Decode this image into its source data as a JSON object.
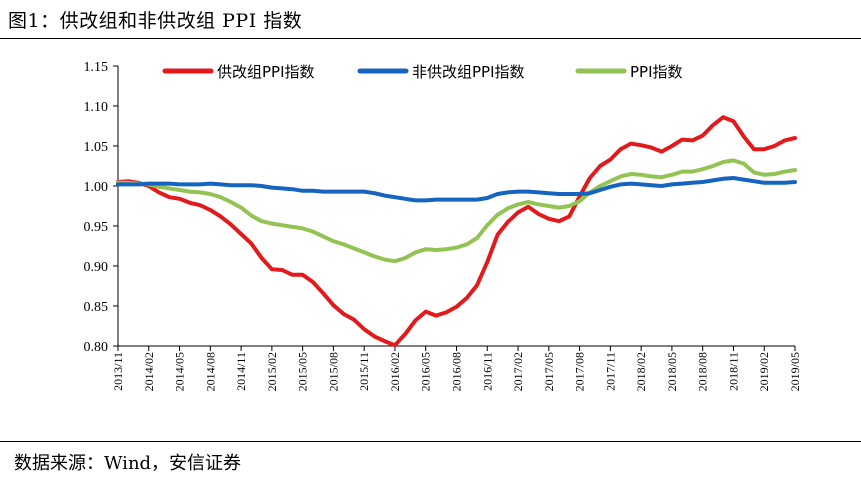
{
  "figure": {
    "title": "图1：供改组和非供改组 PPI 指数",
    "source_label": "数据来源：",
    "source_text": "Wind，安信证券"
  },
  "chart_data": {
    "type": "line",
    "title": "",
    "xlabel": "",
    "ylabel": "",
    "ylim": [
      0.8,
      1.15
    ],
    "yticks": [
      "0.80",
      "0.85",
      "0.90",
      "0.95",
      "1.00",
      "1.05",
      "1.10",
      "1.15"
    ],
    "xticks": [
      "2013/11",
      "2014/02",
      "2014/05",
      "2014/08",
      "2014/11",
      "2015/02",
      "2015/05",
      "2015/08",
      "2015/11",
      "2016/02",
      "2016/05",
      "2016/08",
      "2016/11",
      "2017/02",
      "2017/05",
      "2017/08",
      "2017/11",
      "2018/02",
      "2018/05",
      "2018/08",
      "2018/11",
      "2019/02",
      "2019/05"
    ],
    "legend_position": "top",
    "grid": false,
    "x": [
      "2013/11",
      "2013/12",
      "2014/01",
      "2014/02",
      "2014/03",
      "2014/04",
      "2014/05",
      "2014/06",
      "2014/07",
      "2014/08",
      "2014/09",
      "2014/10",
      "2014/11",
      "2014/12",
      "2015/01",
      "2015/02",
      "2015/03",
      "2015/04",
      "2015/05",
      "2015/06",
      "2015/07",
      "2015/08",
      "2015/09",
      "2015/10",
      "2015/11",
      "2015/12",
      "2016/01",
      "2016/02",
      "2016/03",
      "2016/04",
      "2016/05",
      "2016/06",
      "2016/07",
      "2016/08",
      "2016/09",
      "2016/10",
      "2016/11",
      "2016/12",
      "2017/01",
      "2017/02",
      "2017/03",
      "2017/04",
      "2017/05",
      "2017/06",
      "2017/07",
      "2017/08",
      "2017/09",
      "2017/10",
      "2017/11",
      "2017/12",
      "2018/01",
      "2018/02",
      "2018/03",
      "2018/04",
      "2018/05",
      "2018/06",
      "2018/07",
      "2018/08",
      "2018/09",
      "2018/10",
      "2018/11",
      "2018/12",
      "2019/01",
      "2019/02",
      "2019/03",
      "2019/04",
      "2019/05"
    ],
    "series": [
      {
        "name": "供改组PPI指数",
        "color": "#e31a1c",
        "values": [
          1.005,
          1.006,
          1.004,
          1.0,
          0.992,
          0.986,
          0.984,
          0.979,
          0.976,
          0.97,
          0.962,
          0.952,
          0.94,
          0.928,
          0.91,
          0.896,
          0.895,
          0.889,
          0.889,
          0.88,
          0.866,
          0.851,
          0.84,
          0.833,
          0.821,
          0.812,
          0.806,
          0.801,
          0.815,
          0.832,
          0.843,
          0.838,
          0.842,
          0.849,
          0.86,
          0.876,
          0.905,
          0.939,
          0.955,
          0.967,
          0.974,
          0.965,
          0.959,
          0.956,
          0.962,
          0.987,
          1.01,
          1.025,
          1.033,
          1.046,
          1.053,
          1.051,
          1.048,
          1.043,
          1.05,
          1.058,
          1.057,
          1.063,
          1.076,
          1.086,
          1.081,
          1.062,
          1.046,
          1.046,
          1.05,
          1.057,
          1.06
        ]
      },
      {
        "name": "非供改组PPI指数",
        "color": "#1565c0",
        "values": [
          1.002,
          1.002,
          1.002,
          1.003,
          1.003,
          1.003,
          1.002,
          1.002,
          1.002,
          1.003,
          1.002,
          1.001,
          1.001,
          1.001,
          1.0,
          0.998,
          0.997,
          0.996,
          0.994,
          0.994,
          0.993,
          0.993,
          0.993,
          0.993,
          0.993,
          0.991,
          0.988,
          0.986,
          0.984,
          0.982,
          0.982,
          0.983,
          0.983,
          0.983,
          0.983,
          0.983,
          0.985,
          0.99,
          0.992,
          0.993,
          0.993,
          0.992,
          0.991,
          0.99,
          0.99,
          0.99,
          0.991,
          0.995,
          0.999,
          1.002,
          1.003,
          1.002,
          1.001,
          1.0,
          1.002,
          1.003,
          1.004,
          1.005,
          1.007,
          1.009,
          1.01,
          1.008,
          1.006,
          1.004,
          1.004,
          1.004,
          1.005
        ]
      },
      {
        "name": "PPI指数",
        "color": "#92c353",
        "values": [
          1.004,
          1.004,
          1.003,
          1.002,
          0.999,
          0.997,
          0.995,
          0.993,
          0.992,
          0.99,
          0.986,
          0.98,
          0.973,
          0.963,
          0.956,
          0.953,
          0.951,
          0.949,
          0.947,
          0.943,
          0.937,
          0.931,
          0.927,
          0.922,
          0.917,
          0.912,
          0.908,
          0.906,
          0.91,
          0.917,
          0.921,
          0.92,
          0.921,
          0.923,
          0.927,
          0.935,
          0.951,
          0.964,
          0.972,
          0.977,
          0.98,
          0.977,
          0.975,
          0.973,
          0.975,
          0.981,
          0.992,
          1.0,
          1.006,
          1.012,
          1.015,
          1.014,
          1.012,
          1.011,
          1.014,
          1.018,
          1.018,
          1.021,
          1.025,
          1.03,
          1.032,
          1.028,
          1.017,
          1.014,
          1.015,
          1.018,
          1.02
        ]
      }
    ]
  }
}
